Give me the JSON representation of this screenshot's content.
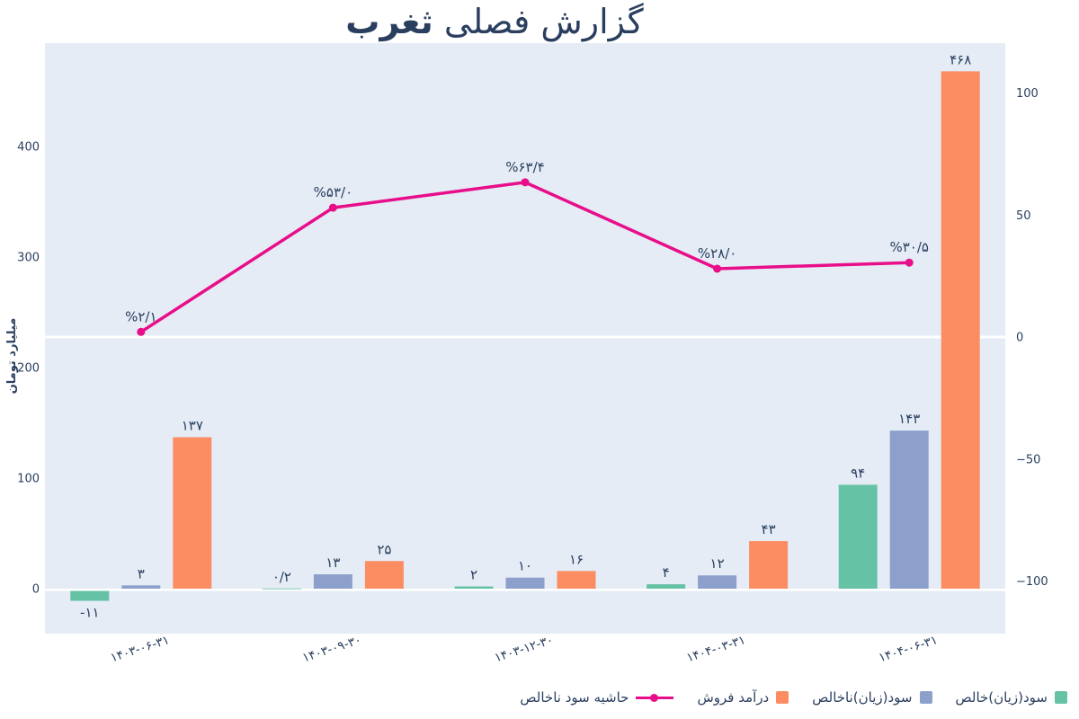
{
  "title": {
    "prefix": "گزارش فصلی",
    "symbol": "ثغرب"
  },
  "axes": {
    "y_left_title": "میلیارد تومان",
    "y_left_ticks": [
      {
        "label": "0",
        "value": 0
      },
      {
        "label": "100",
        "value": 100
      },
      {
        "label": "200",
        "value": 200
      },
      {
        "label": "300",
        "value": 300
      },
      {
        "label": "400",
        "value": 400
      }
    ],
    "y_right_ticks": [
      {
        "label": "100",
        "value": 100
      },
      {
        "label": "50",
        "value": 50
      },
      {
        "label": "0",
        "value": 0
      },
      {
        "label": "−50",
        "value": -50
      },
      {
        "label": "−100",
        "value": -100
      }
    ]
  },
  "colors": {
    "text": "#2a3f5f",
    "plot_bg": "#e5ecf6",
    "zero_line": "#ffffff",
    "net": "#66c2a5",
    "gross": "#8da0cb",
    "revenue": "#fc8d62",
    "margin_line": "#e80e8a"
  },
  "chart_data": {
    "type": "bar",
    "subtype": "grouped bars (left axis) with percentage line (right axis)",
    "title": "گزارش فصلی ثغرب",
    "ylabel": "میلیارد تومان",
    "categories": [
      "۱۴۰۳-۰۶-۳۱",
      "۱۴۰۳-۰۹-۳۰",
      "۱۴۰۳-۱۲-۳۰",
      "۱۴۰۴-۰۳-۳۱",
      "۱۴۰۴-۰۶-۳۱"
    ],
    "series": [
      {
        "name": "سود(زیان)خالص",
        "color": "#66c2a5",
        "axis": "left",
        "values": [
          -11,
          0.2,
          2,
          4,
          94
        ],
        "labels": [
          "-۱۱",
          "۰/۲",
          "۲",
          "۴",
          "۹۴"
        ]
      },
      {
        "name": "سود(زیان)ناخالص",
        "color": "#8da0cb",
        "axis": "left",
        "values": [
          3,
          13,
          10,
          12,
          143
        ],
        "labels": [
          "۳",
          "۱۳",
          "۱۰",
          "۱۲",
          "۱۴۳"
        ]
      },
      {
        "name": "درآمد فروش",
        "color": "#fc8d62",
        "axis": "left",
        "values": [
          137,
          25,
          16,
          43,
          468
        ],
        "labels": [
          "۱۳۷",
          "۲۵",
          "۱۶",
          "۴۳",
          "۴۶۸"
        ]
      }
    ],
    "line_series": {
      "name": "حاشیه سود ناخالص",
      "color": "#e80e8a",
      "axis": "right",
      "values": [
        2.1,
        53.0,
        63.4,
        28.0,
        30.5
      ],
      "labels": [
        "%۲/۱",
        "%۵۳/۰",
        "%۶۳/۴",
        "%۲۸/۰",
        "%۳۰/۵"
      ]
    },
    "y_left_range": [
      -35,
      494
    ],
    "y_right_range": [
      -121,
      120
    ],
    "grid": "white zero lines only",
    "legend_position": "bottom-right",
    "plot_bg": "#e5ecf6"
  }
}
